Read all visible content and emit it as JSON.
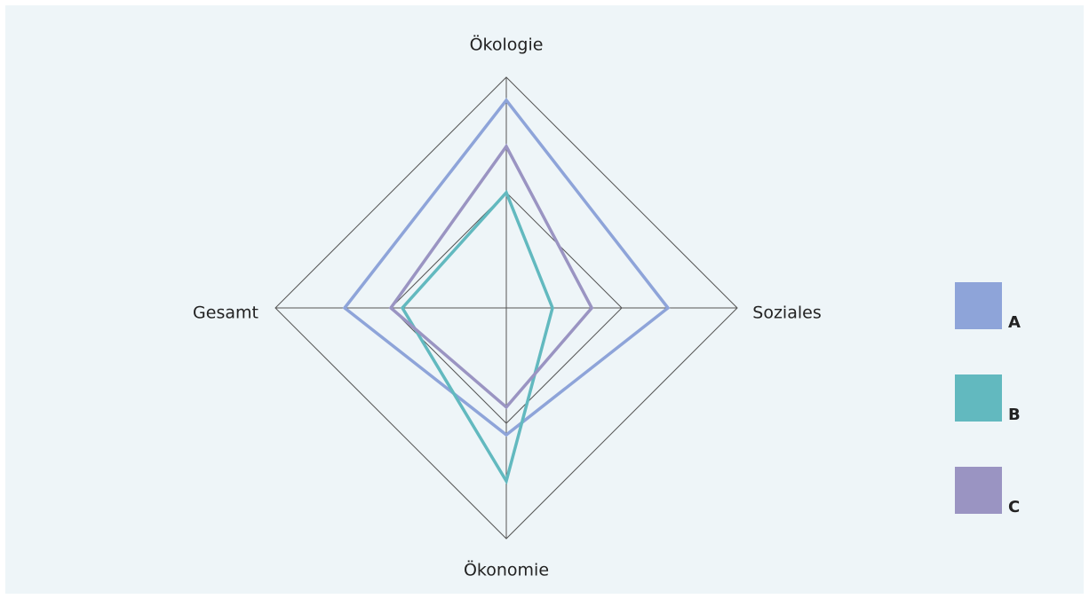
{
  "chart_data": {
    "type": "radar",
    "categories": [
      "Ökologie",
      "Soziales",
      "Ökonomie",
      "Gesamt"
    ],
    "series": [
      {
        "name": "A",
        "color": "#8ea4d9",
        "values": [
          9,
          7,
          5.5,
          7
        ]
      },
      {
        "name": "B",
        "color": "#62b9bf",
        "values": [
          5,
          2,
          7.5,
          4.5
        ]
      },
      {
        "name": "C",
        "color": "#9a94c2",
        "values": [
          7,
          3.7,
          4.3,
          5
        ]
      }
    ],
    "rlim": [
      0,
      10
    ],
    "rticks": [
      5,
      10
    ],
    "grid": true,
    "legend": "right"
  }
}
